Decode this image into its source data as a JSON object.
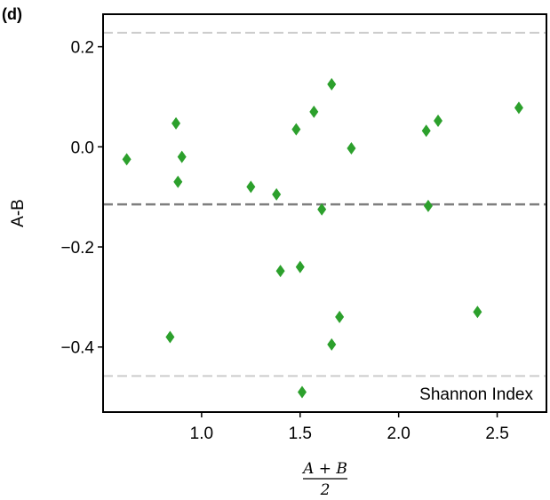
{
  "chart_data": {
    "type": "scatter",
    "panel_label": "(d)",
    "annotation": "Shannon Index",
    "xlabel": {
      "numerator": "A + B",
      "denominator": "2"
    },
    "ylabel": "A-B",
    "xlim": [
      0.5,
      2.75
    ],
    "ylim": [
      -0.53,
      0.265
    ],
    "x_ticks": [
      1.0,
      1.5,
      2.0,
      2.5
    ],
    "x_tick_labels": [
      "1.0",
      "1.5",
      "2.0",
      "2.5"
    ],
    "y_ticks": [
      0.2,
      0.0,
      -0.2,
      -0.4
    ],
    "y_tick_labels": [
      "0.2",
      "0.0",
      "−0.2",
      "−0.4"
    ],
    "reference_lines": {
      "mean": -0.115,
      "upper_limit": 0.228,
      "lower_limit": -0.458
    },
    "marker": "diamond",
    "colors": {
      "points": "#2ca02c",
      "mean_line": "#7f7f7f",
      "limit_lines": "#cccccc"
    },
    "points": [
      {
        "x": 0.62,
        "y": -0.025
      },
      {
        "x": 0.84,
        "y": -0.38
      },
      {
        "x": 0.87,
        "y": 0.047
      },
      {
        "x": 0.88,
        "y": -0.07
      },
      {
        "x": 0.9,
        "y": -0.02
      },
      {
        "x": 1.25,
        "y": -0.08
      },
      {
        "x": 1.38,
        "y": -0.095
      },
      {
        "x": 1.4,
        "y": -0.248
      },
      {
        "x": 1.48,
        "y": 0.035
      },
      {
        "x": 1.5,
        "y": -0.24
      },
      {
        "x": 1.51,
        "y": -0.49
      },
      {
        "x": 1.57,
        "y": 0.07
      },
      {
        "x": 1.61,
        "y": -0.125
      },
      {
        "x": 1.66,
        "y": 0.125
      },
      {
        "x": 1.66,
        "y": -0.395
      },
      {
        "x": 1.7,
        "y": -0.34
      },
      {
        "x": 1.76,
        "y": -0.003
      },
      {
        "x": 2.14,
        "y": 0.032
      },
      {
        "x": 2.15,
        "y": -0.118
      },
      {
        "x": 2.2,
        "y": 0.052
      },
      {
        "x": 2.4,
        "y": -0.33
      },
      {
        "x": 2.61,
        "y": 0.078
      }
    ]
  }
}
